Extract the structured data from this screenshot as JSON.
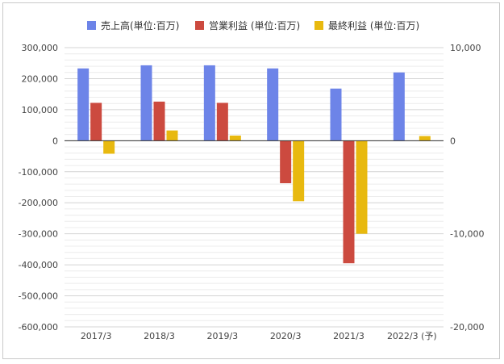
{
  "chart_data": {
    "type": "bar",
    "categories": [
      "2017/3",
      "2018/3",
      "2019/3",
      "2020/3",
      "2021/3",
      "2022/3 (予)"
    ],
    "series": [
      {
        "name": "売上高(単位:百万)",
        "color": "#6d84e8",
        "values": [
          233000,
          243000,
          243000,
          233000,
          168000,
          220000
        ],
        "axis": "left"
      },
      {
        "name": "営業利益 (単位:百万)",
        "color": "#cc4a3f",
        "values": [
          122000,
          126000,
          122000,
          -137000,
          -395000,
          null
        ],
        "axis": "left"
      },
      {
        "name": "最終利益 (単位:百万)",
        "color": "#e8b90f",
        "values": [
          -1400,
          1100,
          550,
          -6500,
          -10000,
          500
        ],
        "axis": "right"
      }
    ],
    "y_left": {
      "min": -600000,
      "max": 300000,
      "ticks": [
        300000,
        200000,
        100000,
        0,
        -100000,
        -200000,
        -300000,
        -400000,
        -500000,
        -600000
      ],
      "tick_labels": [
        "300,000",
        "200,000",
        "100,000",
        "0",
        "-100,000",
        "-200,000",
        "-300,000",
        "-400,000",
        "-500,000",
        "-600,000"
      ]
    },
    "y_right": {
      "min": -20000,
      "max": 10000,
      "ticks": [
        10000,
        0,
        -10000,
        -20000
      ],
      "tick_labels": [
        "10,000",
        "0",
        "-10,000",
        "-20,000"
      ]
    },
    "legend_position": "top",
    "grid": true,
    "title": "",
    "xlabel": "",
    "ylabel": ""
  }
}
